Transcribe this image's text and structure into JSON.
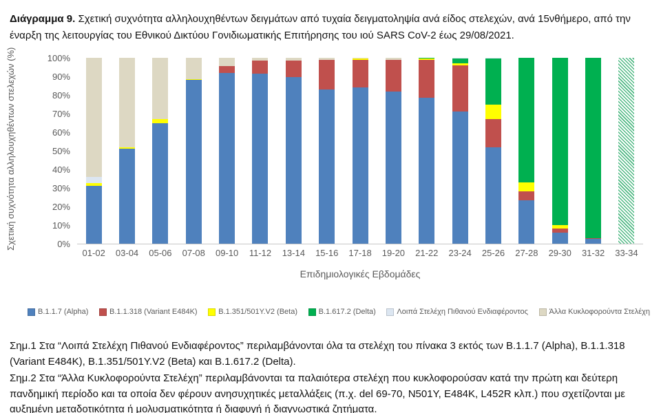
{
  "title": {
    "label": "Διάγραμμα 9.",
    "text": " Σχετική συχνότητα αλληλουχηθέντων δειγμάτων από τυχαία δειγματοληψία ανά είδος στελεχών, ανά 15νθήμερο, από την έναρξη της λειτουργίας του Εθνικού Δικτύου Γονιδιωματικής Επιτήρησης του ιού SARS CoV-2 έως 29/08/2021."
  },
  "chart_data": {
    "type": "bar",
    "stacked": true,
    "title": "Διάγραμμα 9. Σχετική συχνότητα αλληλουχηθέντων δειγμάτων ανά είδος στελεχών, ανά 15νθήμερο, έως 29/08/2021",
    "categories": [
      "01-02",
      "03-04",
      "05-06",
      "07-08",
      "09-10",
      "11-12",
      "13-14",
      "15-16",
      "17-18",
      "19-20",
      "21-22",
      "23-24",
      "25-26",
      "27-28",
      "29-30",
      "31-32",
      "33-34"
    ],
    "series": [
      {
        "name": "B.1.1.7 (Alpha)",
        "color": "#4F81BD",
        "values": [
          31,
          51,
          65,
          88,
          92,
          91.5,
          89.5,
          83,
          84,
          82,
          78.5,
          71,
          52,
          23.5,
          6,
          2.5,
          0
        ]
      },
      {
        "name": "B.1.1.318 (Variant E484K)",
        "color": "#C0504D",
        "values": [
          0,
          0,
          0,
          0,
          3.5,
          7,
          9,
          16,
          15,
          17,
          20.5,
          25,
          15,
          4.5,
          2,
          0.5,
          0
        ]
      },
      {
        "name": "B.1.351/501Y.V2 (Beta)",
        "color": "#FFFF00",
        "values": [
          1.5,
          1,
          2,
          0.5,
          0,
          0,
          0,
          0,
          0.5,
          0,
          0.5,
          1,
          8,
          5,
          2,
          0,
          0
        ]
      },
      {
        "name": "B.1.617.2 (Delta)",
        "color": "#00B050",
        "values": [
          0,
          0,
          0,
          0,
          0,
          0,
          0,
          0,
          0,
          0,
          0.5,
          2.5,
          24.5,
          67,
          90,
          97,
          100
        ]
      },
      {
        "name": "Λοιπά Στελέχη Πιθανού Ενδιαφέροντος",
        "color": "#DCE6F1",
        "values": [
          3.5,
          0,
          0,
          0,
          0,
          0,
          0,
          0,
          0,
          0,
          0,
          0.5,
          0.5,
          0,
          0,
          0,
          0
        ]
      },
      {
        "name": "Άλλα Κυκλοφορούντα Στελέχη",
        "color": "#DDD8C3",
        "values": [
          64,
          48,
          33,
          11.5,
          4.5,
          1.5,
          1.5,
          1,
          0.5,
          1,
          0,
          0,
          0,
          0,
          0,
          0,
          0
        ]
      }
    ],
    "yticks": [
      "100%",
      "90%",
      "80%",
      "70%",
      "60%",
      "50%",
      "40%",
      "30%",
      "20%",
      "10%",
      "0%"
    ],
    "ylim": [
      0,
      100
    ],
    "ylabel": "Σχετική συχνότητα αλληλουχηθέντων στελεχών (%)",
    "xlabel": "Επιδημιολογικές Εβδομάδες",
    "legend_position": "bottom",
    "grid": false,
    "hatched_categories": [
      "33-34"
    ],
    "hatched_series": "B.1.617.2 (Delta)"
  },
  "notes": [
    "Σημ.1 Στα “Λοιπά Στελέχη Πιθανού Ενδιαφέροντος” περιλαμβάνονται όλα τα στελέχη του πίνακα 3 εκτός των B.1.1.7 (Alpha), B.1.1.318 (Variant E484K), B.1.351/501Y.V2 (Beta) και B.1.617.2 (Delta).",
    "Σημ.2 Στα “Άλλα Κυκλοφορούντα Στελέχη” περιλαμβάνονται τα παλαιότερα στελέχη που κυκλοφορούσαν κατά την πρώτη και δεύτερη πανδημική περίοδο και τα οποία δεν φέρουν ανησυχητικές μεταλλάξεις (π.χ. del 69-70, N501Y, E484K, L452R κλπ.) που σχετίζονται με αυξημένη μεταδοτικότητα ή μολυσματικότητα ή διαφυγή ή διαγνωστικά ζητήματα."
  ]
}
